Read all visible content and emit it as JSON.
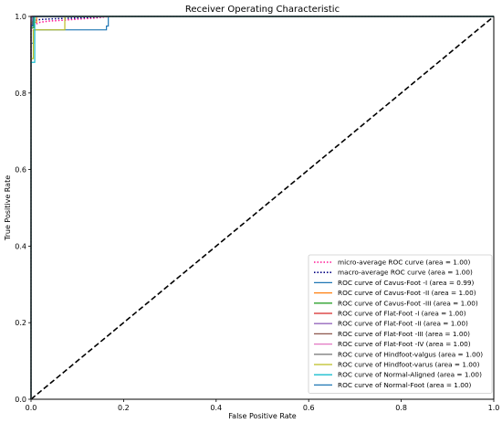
{
  "chart_data": {
    "type": "line",
    "title": "Receiver Operating Characteristic",
    "xlabel": "False Positive Rate",
    "ylabel": "True Positive Rate",
    "xlim": [
      0.0,
      1.0
    ],
    "ylim": [
      0.0,
      1.0
    ],
    "xticks": [
      "0.0",
      "0.2",
      "0.4",
      "0.6",
      "0.8",
      "1.0"
    ],
    "yticks": [
      "0.0",
      "0.2",
      "0.4",
      "0.6",
      "0.8",
      "1.0"
    ],
    "grid": false,
    "legend_position": "lower-right",
    "series": [
      {
        "name": "micro-average ROC curve (area = 1.00)",
        "color": "#ff1493",
        "style": "dotted",
        "x": [
          0,
          0,
          0.005,
          0.01,
          0.02,
          0.04,
          0.07,
          0.1,
          0.14,
          0.17,
          1.0
        ],
        "y": [
          0,
          0.96,
          0.975,
          0.98,
          0.985,
          0.988,
          0.99,
          0.993,
          0.996,
          1.0,
          1.0
        ]
      },
      {
        "name": "macro-average ROC curve (area = 1.00)",
        "color": "#000080",
        "style": "dotted",
        "x": [
          0,
          0,
          0.005,
          0.01,
          0.02,
          0.05,
          0.1,
          0.17,
          1.0
        ],
        "y": [
          0,
          0.97,
          0.985,
          0.99,
          0.992,
          0.994,
          0.996,
          1.0,
          1.0
        ]
      },
      {
        "name": "ROC curve of Cavus-Foot -I (area = 0.99)",
        "color": "#1f77b4",
        "style": "solid",
        "x": [
          0,
          0,
          0.005,
          0.005,
          0.163,
          0.163,
          0.167,
          0.167,
          1.0
        ],
        "y": [
          0,
          0.93,
          0.93,
          0.965,
          0.965,
          0.975,
          0.975,
          1.0,
          1.0
        ]
      },
      {
        "name": "ROC curve of Cavus-Foot -II (area = 1.00)",
        "color": "#ff7f0e",
        "style": "solid",
        "x": [
          0,
          0,
          0.012,
          0.012,
          1.0
        ],
        "y": [
          0,
          0.985,
          0.985,
          1.0,
          1.0
        ]
      },
      {
        "name": "ROC curve of Cavus-Foot -III (area = 1.00)",
        "color": "#2ca02c",
        "style": "solid",
        "x": [
          0,
          0,
          0.006,
          0.006,
          1.0
        ],
        "y": [
          0,
          0.97,
          0.97,
          1.0,
          1.0
        ]
      },
      {
        "name": "ROC curve of Flat-Foot -I (area = 1.00)",
        "color": "#d62728",
        "style": "solid",
        "x": [
          0,
          0,
          0.004,
          0.004,
          1.0
        ],
        "y": [
          0,
          0.99,
          0.99,
          1.0,
          1.0
        ]
      },
      {
        "name": "ROC curve of Flat-Foot -II (area = 1.00)",
        "color": "#9467bd",
        "style": "solid",
        "x": [
          0,
          0,
          1.0
        ],
        "y": [
          0,
          1.0,
          1.0
        ]
      },
      {
        "name": "ROC curve of Flat-Foot -III (area = 1.00)",
        "color": "#8c564b",
        "style": "solid",
        "x": [
          0,
          0,
          0.003,
          0.003,
          1.0
        ],
        "y": [
          0,
          0.98,
          0.98,
          1.0,
          1.0
        ]
      },
      {
        "name": "ROC curve of Flat-Foot -IV (area = 1.00)",
        "color": "#e377c2",
        "style": "solid",
        "x": [
          0,
          0,
          0.002,
          0.002,
          1.0
        ],
        "y": [
          0,
          0.99,
          0.99,
          1.0,
          1.0
        ]
      },
      {
        "name": "ROC curve of Hindfoot-valgus (area = 1.00)",
        "color": "#7f7f7f",
        "style": "solid",
        "x": [
          0,
          0,
          1.0
        ],
        "y": [
          0,
          1.0,
          1.0
        ]
      },
      {
        "name": "ROC curve of Hindfoot-varus (area = 1.00)",
        "color": "#bcbd22",
        "style": "solid",
        "x": [
          0,
          0,
          0.005,
          0.005,
          0.073,
          0.073,
          1.0
        ],
        "y": [
          0,
          0.89,
          0.89,
          0.965,
          0.965,
          1.0,
          1.0
        ]
      },
      {
        "name": "ROC curve of Normal-Aligned (area = 1.00)",
        "color": "#17becf",
        "style": "solid",
        "x": [
          0,
          0,
          0.008,
          0.008,
          1.0
        ],
        "y": [
          0,
          0.88,
          0.88,
          1.0,
          1.0
        ]
      },
      {
        "name": "ROC curve of Normal-Foot (area = 1.00)",
        "color": "#1f77b4",
        "style": "solid",
        "x": [
          0,
          0,
          0.004,
          0.004,
          1.0
        ],
        "y": [
          0,
          0.975,
          0.975,
          1.0,
          1.0
        ]
      }
    ],
    "reference_line": {
      "x": [
        0,
        1
      ],
      "y": [
        0,
        1
      ],
      "color": "#000000",
      "style": "dashed"
    }
  }
}
